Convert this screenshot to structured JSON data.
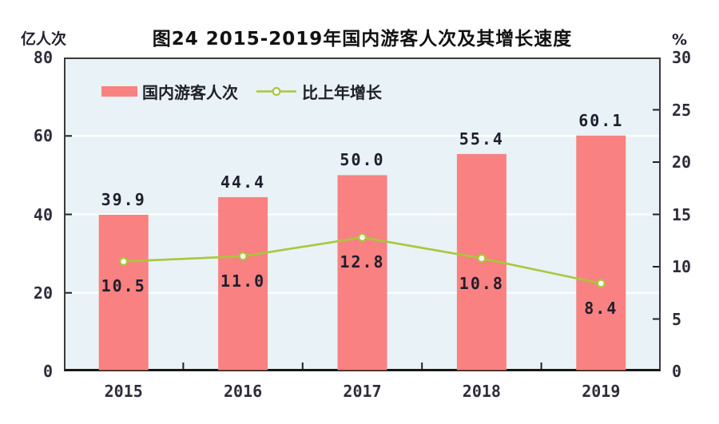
{
  "chart_data": {
    "type": "bar",
    "title": "图24  2015-2019年国内游客人次及其增长速度",
    "categories": [
      "2015",
      "2016",
      "2017",
      "2018",
      "2019"
    ],
    "series": [
      {
        "name": "国内游客人次",
        "type": "bar",
        "axis": "left",
        "color": "#f98181",
        "values": [
          39.9,
          44.4,
          50.0,
          55.4,
          60.1
        ]
      },
      {
        "name": "比上年增长",
        "type": "line",
        "axis": "right",
        "color": "#a9c73b",
        "marker": "open-circle",
        "values": [
          10.5,
          11.0,
          12.8,
          10.8,
          8.4
        ]
      }
    ],
    "left_axis": {
      "label": "亿人次",
      "min": 0,
      "max": 80,
      "ticks": [
        0,
        20,
        40,
        60,
        80
      ]
    },
    "right_axis": {
      "label": "%",
      "min": 0,
      "max": 30,
      "ticks": [
        0,
        5,
        10,
        15,
        20,
        25,
        30
      ]
    },
    "gridlines": {
      "left_values": [
        20,
        40,
        60
      ],
      "color": "#ffffff"
    },
    "colors": {
      "plot_bg": "#e9f2f6",
      "axis_frame": "#3b3b3b",
      "tick": "#222222",
      "value_label": "#1e1e2d",
      "marker_fill": "#ffffff"
    },
    "legend_position": "top-left-inside",
    "value_label_decimals": 1,
    "grid": true
  }
}
